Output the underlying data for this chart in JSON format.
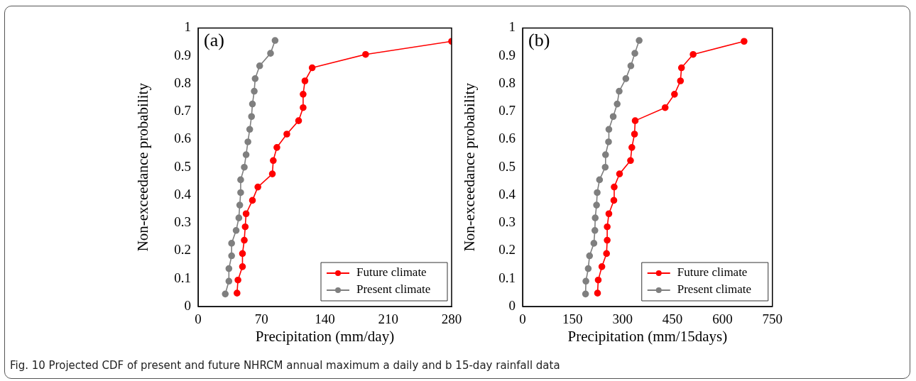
{
  "chart_data": [
    {
      "type": "line",
      "xlabel": "Precipitation (mm/day)",
      "ylabel": "Non-exceedance probability",
      "annotations": [
        "(a)"
      ],
      "legend": "bottom right",
      "marker": "circle",
      "grid": false,
      "xlim": [
        0,
        280
      ],
      "xticks": [
        0,
        70,
        140,
        210,
        280
      ],
      "ylim": [
        0,
        1
      ],
      "yticks": [
        0,
        0.1,
        0.2,
        0.3,
        0.4,
        0.5,
        0.6,
        0.7,
        0.8,
        0.9,
        1
      ],
      "series": [
        {
          "name": "Future climate",
          "color": "#ff0000",
          "x": [
            43,
            44,
            49,
            49,
            51,
            52,
            53,
            60,
            66,
            82,
            83,
            87,
            98,
            111,
            116,
            116,
            118,
            126,
            185,
            280
          ],
          "values": [
            0.048,
            0.095,
            0.143,
            0.19,
            0.238,
            0.286,
            0.333,
            0.381,
            0.429,
            0.476,
            0.524,
            0.571,
            0.619,
            0.667,
            0.714,
            0.762,
            0.81,
            0.857,
            0.905,
            0.952
          ]
        },
        {
          "name": "Present climate",
          "color": "#7f7f7f",
          "x": [
            30,
            34,
            34,
            37,
            37,
            42,
            45,
            46,
            47,
            47,
            51,
            53,
            55,
            57,
            59,
            60,
            62,
            63,
            68,
            80,
            85
          ],
          "values": [
            0.045,
            0.091,
            0.136,
            0.182,
            0.227,
            0.273,
            0.318,
            0.364,
            0.409,
            0.455,
            0.5,
            0.545,
            0.591,
            0.636,
            0.682,
            0.727,
            0.773,
            0.818,
            0.864,
            0.909,
            0.955
          ]
        }
      ]
    },
    {
      "type": "line",
      "xlabel": "Precipitation (mm/15days)",
      "ylabel": "Non-exceedance probability",
      "annotations": [
        "(b)",
        "Fig. 10 Projected CDF of present and future NHRCM annual maximum a daily and b 15-day rainfall data"
      ],
      "legend": "bottom right",
      "marker": "circle",
      "grid": false,
      "xlim": [
        0,
        750
      ],
      "xticks": [
        0,
        150,
        300,
        450,
        600,
        750
      ],
      "ylim": [
        0,
        1
      ],
      "yticks": [
        0,
        0.1,
        0.2,
        0.3,
        0.4,
        0.5,
        0.6,
        0.7,
        0.8,
        0.9,
        1
      ],
      "series": [
        {
          "name": "Future climate",
          "color": "#ff0000",
          "x": [
            225,
            227,
            238,
            252,
            254,
            254,
            259,
            274,
            275,
            291,
            324,
            328,
            336,
            338,
            428,
            456,
            474,
            477,
            512,
            665
          ],
          "values": [
            0.048,
            0.095,
            0.143,
            0.19,
            0.238,
            0.286,
            0.333,
            0.381,
            0.429,
            0.476,
            0.524,
            0.571,
            0.619,
            0.667,
            0.714,
            0.762,
            0.81,
            0.857,
            0.905,
            0.952
          ]
        },
        {
          "name": "Present climate",
          "color": "#7f7f7f",
          "x": [
            189,
            190,
            197,
            201,
            214,
            217,
            218,
            222,
            224,
            231,
            248,
            249,
            258,
            259,
            272,
            284,
            290,
            310,
            325,
            337,
            350
          ],
          "values": [
            0.045,
            0.091,
            0.136,
            0.182,
            0.227,
            0.273,
            0.318,
            0.364,
            0.409,
            0.455,
            0.5,
            0.545,
            0.591,
            0.636,
            0.682,
            0.727,
            0.773,
            0.818,
            0.864,
            0.909,
            0.955
          ]
        }
      ]
    }
  ]
}
